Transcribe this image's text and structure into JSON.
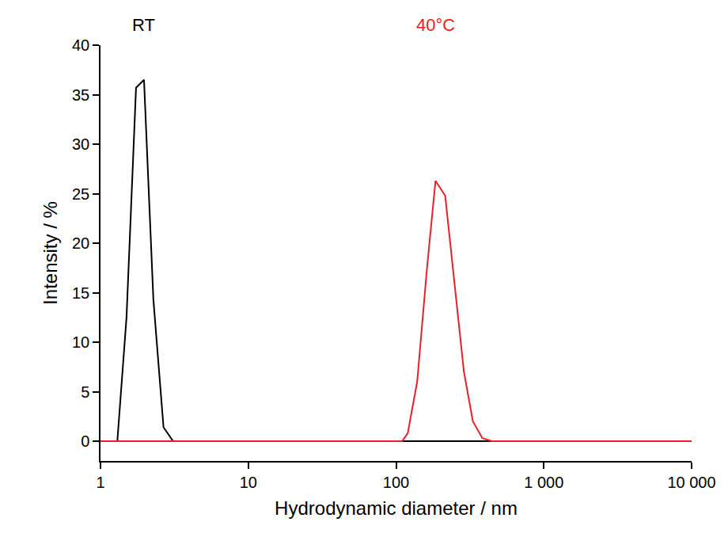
{
  "chart_data": {
    "type": "line",
    "x_label": "Hydrodynamic diameter / nm",
    "y_label": "Intensity / %",
    "log": "x",
    "grid": false,
    "xlim": [
      1,
      10000
    ],
    "xticks": [
      1,
      10,
      100,
      {
        "value": 1000,
        "label": "1 000"
      },
      {
        "value": 10000,
        "label": "10 000"
      }
    ],
    "ylim": [
      -2,
      40
    ],
    "yticks": [
      0,
      5,
      10,
      15,
      20,
      25,
      30,
      35,
      40
    ],
    "series": [
      {
        "name": "RT",
        "color": "#000000",
        "x": [
          1,
          1.3,
          1.5,
          1.74,
          1.97,
          2.28,
          2.67,
          3.1,
          10000
        ],
        "values": [
          0,
          0,
          12.5,
          35.7,
          36.5,
          14.3,
          1.4,
          0,
          0
        ]
      },
      {
        "name": "40°C",
        "color": "#e8202a",
        "x": [
          1,
          110,
          120,
          139,
          162,
          185,
          215,
          249,
          288,
          331,
          384,
          445,
          10000
        ],
        "values": [
          0,
          0,
          0.8,
          6,
          17.5,
          26.3,
          24.8,
          16,
          7,
          2,
          0.3,
          0,
          0
        ]
      }
    ]
  }
}
